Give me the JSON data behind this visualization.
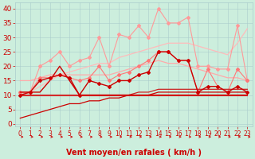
{
  "x": [
    0,
    1,
    2,
    3,
    4,
    5,
    6,
    7,
    8,
    9,
    10,
    11,
    12,
    13,
    14,
    15,
    16,
    17,
    18,
    19,
    20,
    21,
    22,
    23
  ],
  "background_color": "#cceedd",
  "grid_color": "#aacccc",
  "xlabel": "Vent moyen/en rafales ( km/h )",
  "xlabel_color": "#cc0000",
  "xlabel_fontsize": 7,
  "tick_color": "#cc0000",
  "tick_fontsize": 5.5,
  "ylim": [
    -1,
    42
  ],
  "yticks": [
    0,
    5,
    10,
    15,
    20,
    25,
    30,
    35,
    40
  ],
  "lines": [
    {
      "y": [
        11,
        11,
        20,
        22,
        25,
        20,
        22,
        23,
        30,
        20,
        31,
        30,
        34,
        30,
        40,
        35,
        35,
        37,
        20,
        20,
        19,
        19,
        34,
        15
      ],
      "color": "#ff9999",
      "lw": 0.8,
      "marker": "D",
      "ms": 2.0,
      "zorder": 3
    },
    {
      "y": [
        10,
        11,
        13,
        15,
        17,
        18,
        19,
        20,
        21,
        21,
        23,
        24,
        25,
        26,
        27,
        28,
        28,
        28,
        27,
        26,
        25,
        24,
        28,
        33
      ],
      "color": "#ffbbbb",
      "lw": 0.9,
      "marker": null,
      "ms": 0,
      "zorder": 2
    },
    {
      "y": [
        11,
        11,
        16,
        16,
        17,
        16,
        15,
        16,
        20,
        15,
        17,
        18,
        20,
        22,
        25,
        25,
        22,
        22,
        11,
        19,
        13,
        11,
        19,
        15
      ],
      "color": "#ff7777",
      "lw": 0.8,
      "marker": "D",
      "ms": 2.0,
      "zorder": 4
    },
    {
      "y": [
        15,
        15,
        16,
        17,
        17,
        17,
        17,
        17,
        17,
        17,
        18,
        19,
        20,
        21,
        22,
        21,
        21,
        20,
        19,
        18,
        17,
        16,
        16,
        15
      ],
      "color": "#ffaaaa",
      "lw": 0.9,
      "marker": null,
      "ms": 0,
      "zorder": 2
    },
    {
      "y": [
        10,
        11,
        15,
        16,
        17,
        16,
        10,
        15,
        14,
        13,
        15,
        15,
        17,
        18,
        25,
        25,
        22,
        22,
        11,
        13,
        13,
        11,
        13,
        11
      ],
      "color": "#cc0000",
      "lw": 1.0,
      "marker": "D",
      "ms": 2.0,
      "zorder": 6
    },
    {
      "y": [
        11,
        11,
        11,
        15,
        20,
        15,
        10,
        10,
        10,
        10,
        10,
        10,
        10,
        10,
        10,
        10,
        10,
        10,
        10,
        10,
        10,
        10,
        10,
        10
      ],
      "color": "#cc0000",
      "lw": 1.0,
      "marker": null,
      "ms": 0,
      "zorder": 5
    },
    {
      "y": [
        10,
        10,
        10,
        10,
        10,
        10,
        10,
        10,
        10,
        10,
        10,
        10,
        11,
        11,
        12,
        12,
        12,
        12,
        12,
        12,
        12,
        12,
        12,
        12
      ],
      "color": "#cc2222",
      "lw": 0.9,
      "marker": null,
      "ms": 0,
      "zorder": 4
    },
    {
      "y": [
        10,
        10,
        10,
        10,
        10,
        10,
        10,
        10,
        10,
        10,
        10,
        10,
        10,
        10,
        10,
        10,
        10,
        10,
        10,
        10,
        10,
        10,
        10,
        10
      ],
      "color": "#dd3333",
      "lw": 0.8,
      "marker": null,
      "ms": 0,
      "zorder": 3
    },
    {
      "y": [
        2,
        3,
        4,
        5,
        6,
        7,
        7,
        8,
        8,
        9,
        9,
        10,
        10,
        10,
        11,
        11,
        11,
        11,
        11,
        11,
        11,
        11,
        11,
        11
      ],
      "color": "#cc0000",
      "lw": 0.9,
      "marker": null,
      "ms": 0,
      "zorder": 4
    }
  ],
  "arrow_color": "#cc0000",
  "arrow_size": 4
}
